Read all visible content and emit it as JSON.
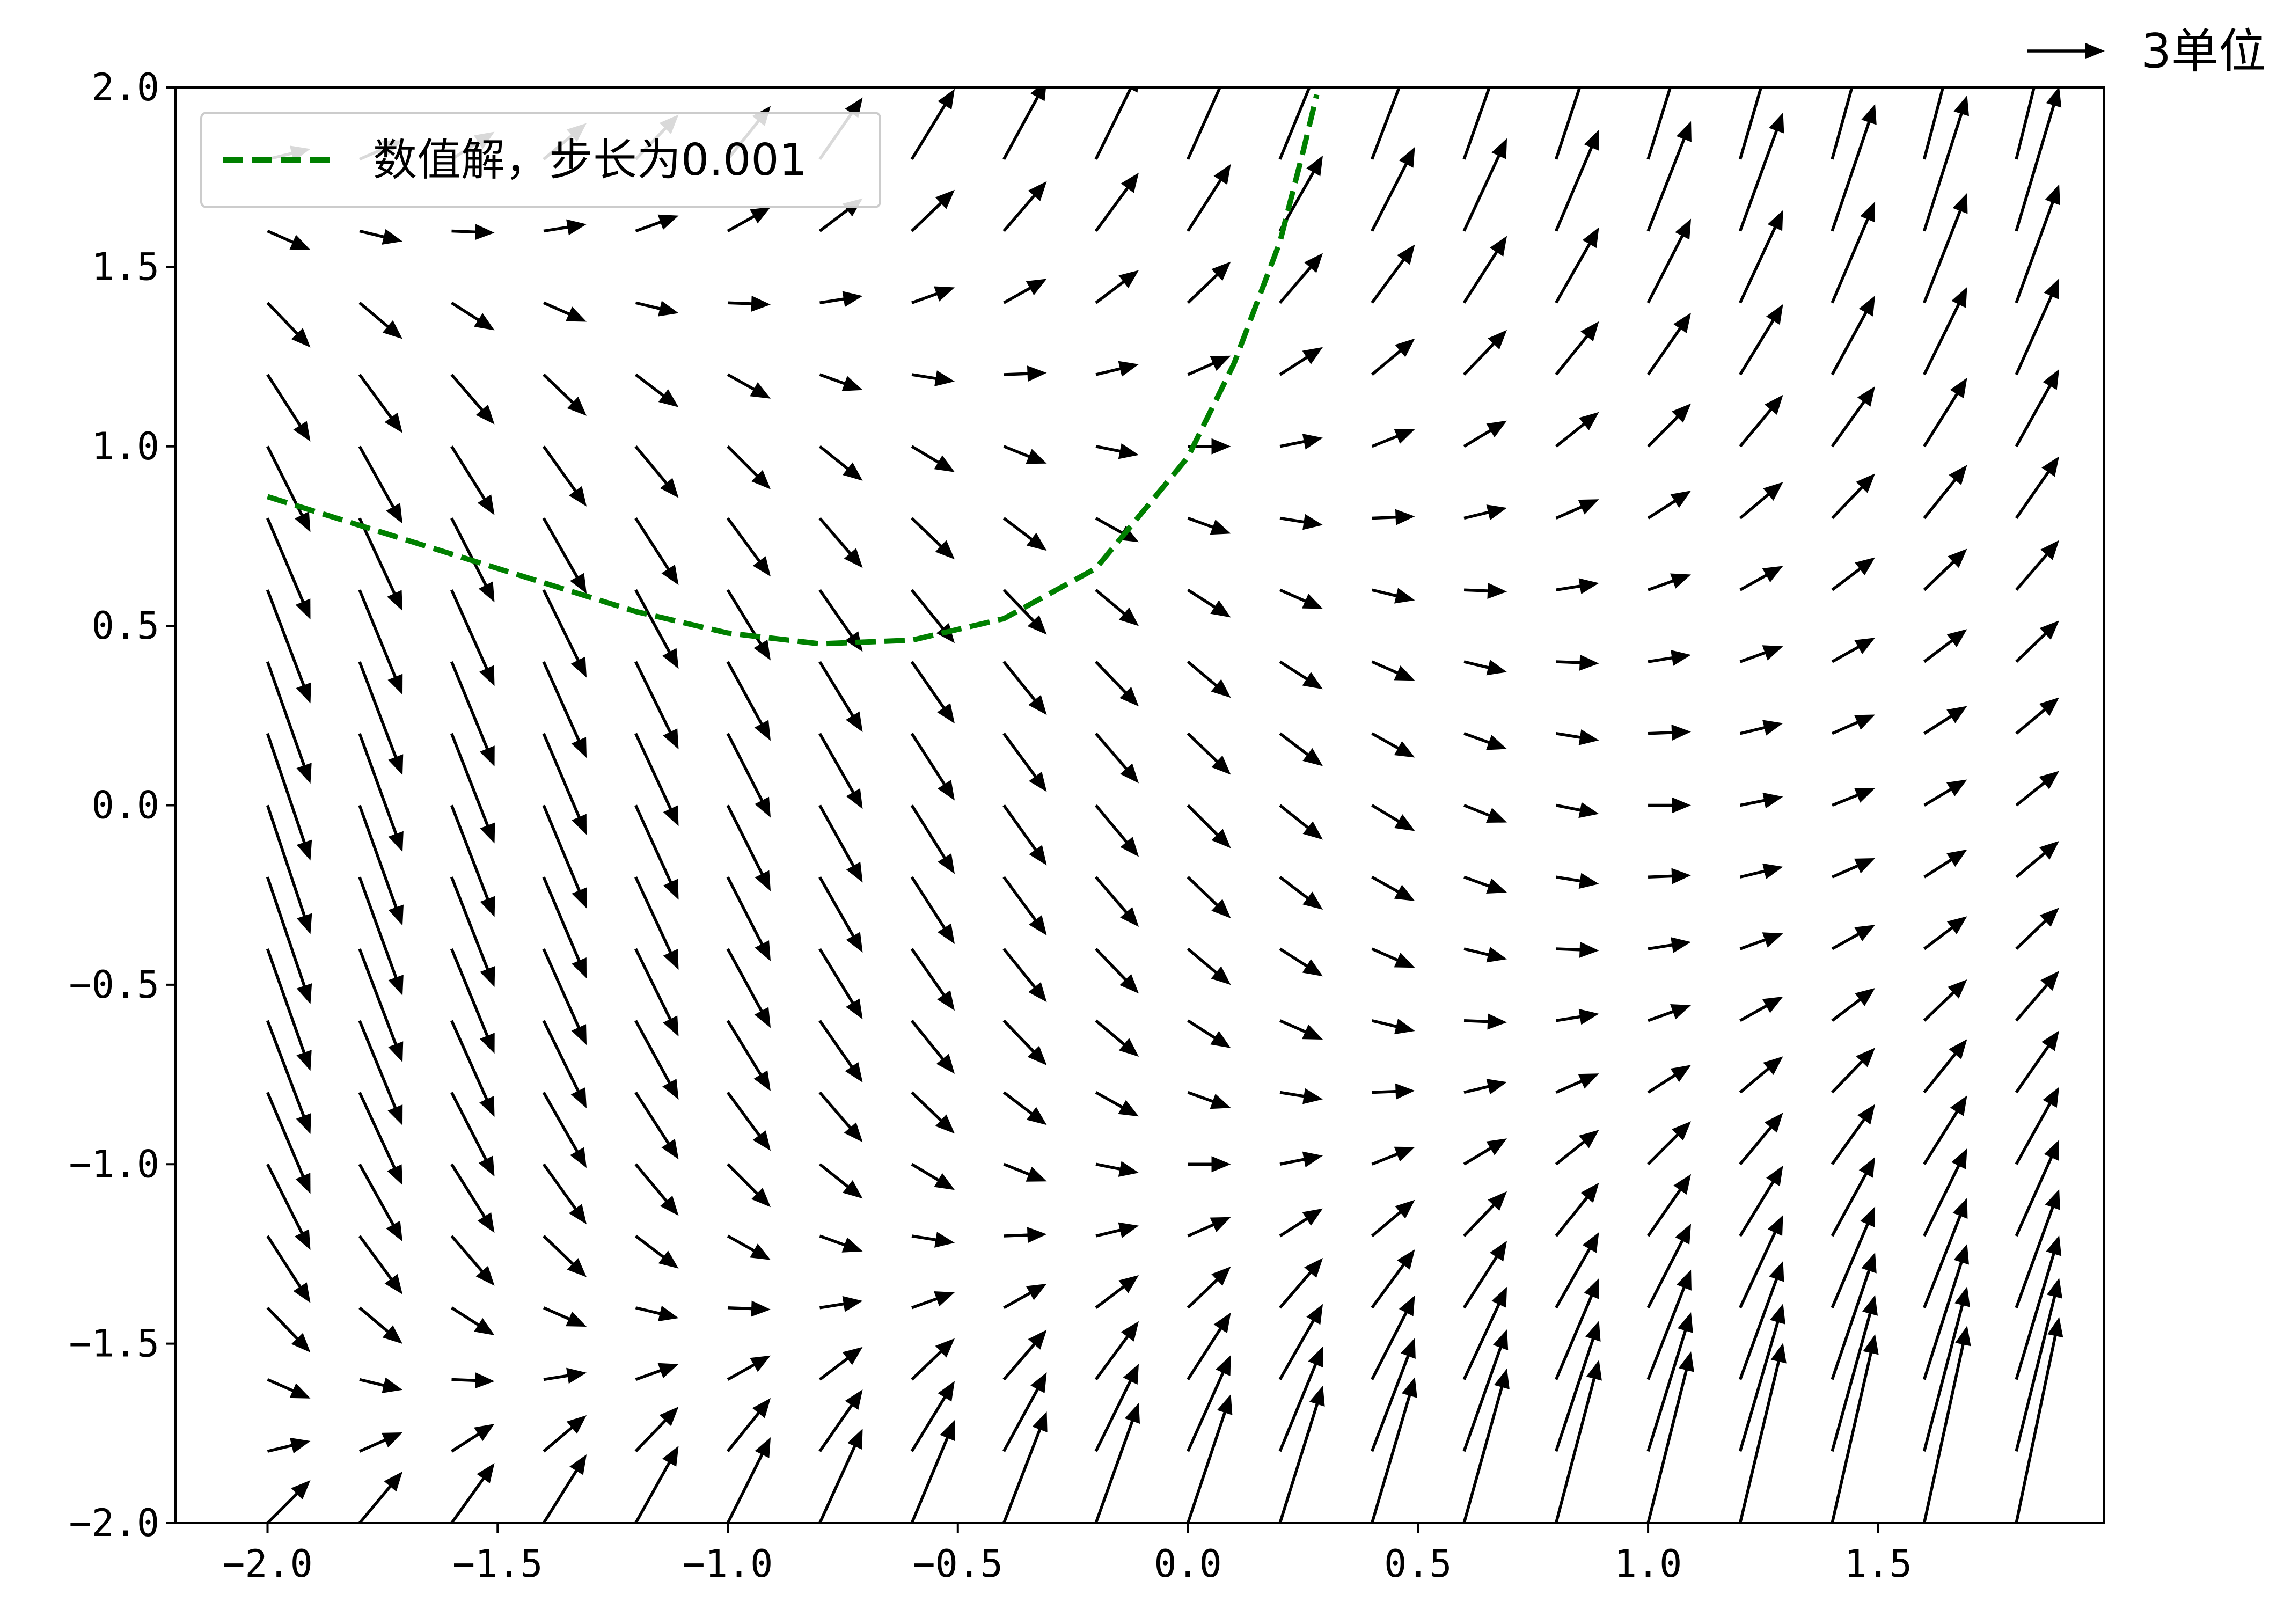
{
  "chart_data": {
    "type": "quiver",
    "title": "",
    "xlabel": "",
    "ylabel": "",
    "xlim": [
      -2.2,
      1.99
    ],
    "ylim": [
      -2.0,
      2.0
    ],
    "x_ticks": [
      "−2.0",
      "−1.5",
      "−1.0",
      "−0.5",
      "0.0",
      "0.5",
      "1.0",
      "1.5"
    ],
    "y_ticks": [
      "−2.0",
      "−1.5",
      "−1.0",
      "−0.5",
      "0.0",
      "0.5",
      "1.0",
      "1.5",
      "2.0"
    ],
    "grid": false,
    "vector_field": {
      "x_start": -2.0,
      "x_step": 0.2,
      "x_count": 20,
      "y_start": -2.0,
      "y_step": 0.2,
      "y_count": 20,
      "dx": 1,
      "dy_formula": "x + y^2 - 1",
      "color": "#000000"
    },
    "quiver_key": {
      "label": "3单位",
      "magnitude": 3
    },
    "series": [
      {
        "name": "数值解，步长为0.001",
        "style": "dashed",
        "color": "#008000",
        "x": [
          -2.0,
          -1.8,
          -1.6,
          -1.4,
          -1.2,
          -1.0,
          -0.8,
          -0.6,
          -0.4,
          -0.2,
          0.0,
          0.1,
          0.2,
          0.25,
          0.28
        ],
        "y": [
          0.86,
          0.78,
          0.7,
          0.62,
          0.54,
          0.48,
          0.45,
          0.46,
          0.52,
          0.66,
          0.97,
          1.23,
          1.57,
          1.82,
          1.98
        ]
      }
    ],
    "legend": {
      "position": "upper-left",
      "entries": [
        "数值解，步长为0.001"
      ]
    }
  }
}
